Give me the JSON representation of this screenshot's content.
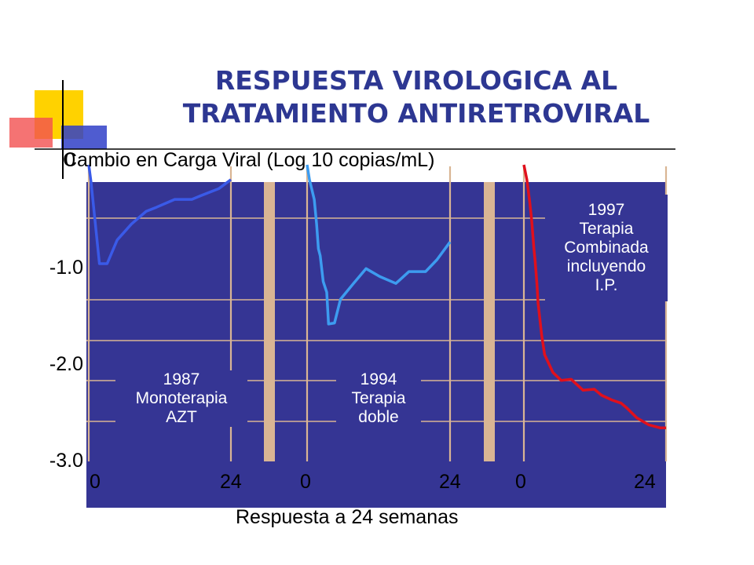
{
  "title": {
    "line1": "RESPUESTA VIROLOGICA AL",
    "line2": "TRATAMIENTO ANTIRETROVIRAL"
  },
  "chart_data": {
    "type": "line",
    "ylabel": "Cambio en Carga Viral (Log 10 copias/mL)",
    "xlabel": "Respuesta a 24 semanas",
    "ylim": [
      -3.0,
      0
    ],
    "y_tick_labels": [
      "0",
      "-1.0",
      "-2.0",
      "-3.0"
    ],
    "panels": [
      {
        "x_tick_labels": [
          "0",
          "24"
        ],
        "xlim": [
          0,
          24
        ],
        "label_lines": [
          "1987",
          "Monoterapia",
          "AZT"
        ],
        "series": {
          "color": "#3a5ae8",
          "x": [
            0,
            0.4,
            1.8,
            3.1,
            4.8,
            7.2,
            9.7,
            11.4,
            14.5,
            17.4,
            19.0,
            22.0,
            24.0
          ],
          "y": [
            0,
            -0.18,
            -1.0,
            -1.0,
            -0.76,
            -0.6,
            -0.47,
            -0.43,
            -0.35,
            -0.35,
            -0.31,
            -0.24,
            -0.15
          ]
        }
      },
      {
        "x_tick_labels": [
          "0",
          "24"
        ],
        "xlim": [
          0,
          24
        ],
        "label_lines": [
          "1994",
          "Terapia",
          "doble"
        ],
        "series": {
          "color": "#3d9cf0",
          "x": [
            0,
            0.4,
            1.2,
            1.6,
            1.9,
            2.2,
            2.7,
            3.3,
            3.6,
            4.6,
            5.6,
            7.8,
            9.9,
            12.2,
            14.9,
            17.1,
            19.9,
            21.8,
            24.0
          ],
          "y": [
            0,
            -0.15,
            -0.35,
            -0.6,
            -0.85,
            -0.92,
            -1.18,
            -1.29,
            -1.61,
            -1.6,
            -1.36,
            -1.2,
            -1.05,
            -1.13,
            -1.2,
            -1.08,
            -1.08,
            -0.96,
            -0.78
          ]
        }
      },
      {
        "x_tick_labels": [
          "0",
          "24"
        ],
        "xlim": [
          0,
          24
        ],
        "label_lines": [
          "1997",
          "Terapia",
          "Combinada",
          "incluyendo",
          "I.P."
        ],
        "series": {
          "color": "#e0101c",
          "x": [
            0,
            0.5,
            1.0,
            1.3,
            1.5,
            1.7,
            1.9,
            2.2,
            2.4,
            3.0,
            3.5,
            4.9,
            6.3,
            8.0,
            10.0,
            11.9,
            13.1,
            14.9,
            16.4,
            17.4,
            19.1,
            21.1,
            23.0,
            24.0
          ],
          "y": [
            0,
            -0.15,
            -0.38,
            -0.55,
            -0.7,
            -0.85,
            -0.97,
            -1.2,
            -1.4,
            -1.72,
            -1.92,
            -2.1,
            -2.18,
            -2.17,
            -2.28,
            -2.27,
            -2.33,
            -2.38,
            -2.41,
            -2.46,
            -2.56,
            -2.63,
            -2.66,
            -2.66
          ]
        }
      }
    ]
  }
}
